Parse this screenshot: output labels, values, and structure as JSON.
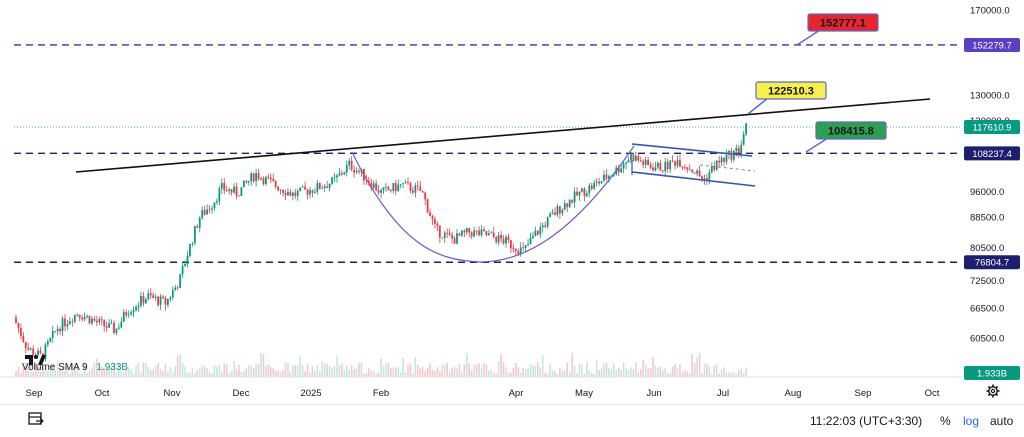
{
  "chart_data": {
    "type": "candlestick",
    "title": "",
    "x_ticks": [
      "Sep",
      "Oct",
      "Nov",
      "Dec",
      "2025",
      "Feb",
      "Apr",
      "May",
      "Jun",
      "Jul",
      "Aug",
      "Sep",
      "Oct"
    ],
    "y_ticks": [
      "170000.0",
      "130000.0",
      "120000.0",
      "96000.0",
      "88500.0",
      "80500.0",
      "72500.0",
      "66500.0",
      "60500.0"
    ],
    "price_labels": [
      {
        "value": "152279.7",
        "color": "#5b3fc4"
      },
      {
        "value": "117610.9",
        "color": "#089981"
      },
      {
        "value": "108237.4",
        "color": "#1e1e6e"
      },
      {
        "value": "76804.7",
        "color": "#1e1e6e"
      },
      {
        "value": "1.933B",
        "color": "#089981"
      }
    ],
    "callouts": [
      {
        "text": "152777.1",
        "color": "#e6262c",
        "price": 152777.1
      },
      {
        "text": "122510.3",
        "color": "#f7ef4b",
        "price": 122510.3
      },
      {
        "text": "108415.8",
        "color": "#2e9e4f",
        "price": 108415.8
      }
    ],
    "levels": [
      152279.7,
      108237.4,
      76804.7
    ],
    "last_price": 117610.9,
    "volume_indicator": {
      "name": "Volume SMA 9",
      "value": "1.933B"
    },
    "scale": "log",
    "colors": {
      "up": "#089981",
      "down": "#f23645",
      "level": "#2a2a7c",
      "trend": "#111111",
      "cup": "#6b5ad0"
    }
  },
  "bottom_bar": {
    "time": "11:22:03 (UTC+3:30)",
    "percent": "%",
    "log": "log",
    "auto": "auto"
  }
}
